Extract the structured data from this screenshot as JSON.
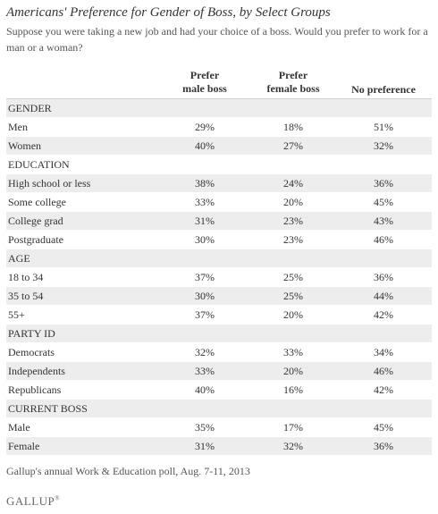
{
  "chart_data": {
    "type": "table",
    "title": "Americans' Preference for Gender of Boss, by Select Groups",
    "subtitle": "Suppose you were taking a new job and had your choice of a boss. Would you prefer to work for a man or a woman?",
    "columns": [
      "Prefer male boss",
      "Prefer female boss",
      "No preference"
    ],
    "column_lines": [
      [
        "Prefer",
        "male boss"
      ],
      [
        "Prefer",
        "female boss"
      ],
      [
        "No preference"
      ]
    ],
    "groups": [
      {
        "name": "GENDER",
        "rows": [
          {
            "label": "Men",
            "values": [
              "29%",
              "18%",
              "51%"
            ]
          },
          {
            "label": "Women",
            "values": [
              "40%",
              "27%",
              "32%"
            ]
          }
        ]
      },
      {
        "name": "EDUCATION",
        "rows": [
          {
            "label": "High school or less",
            "values": [
              "38%",
              "24%",
              "36%"
            ]
          },
          {
            "label": "Some college",
            "values": [
              "33%",
              "20%",
              "45%"
            ]
          },
          {
            "label": "College grad",
            "values": [
              "31%",
              "23%",
              "43%"
            ]
          },
          {
            "label": "Postgraduate",
            "values": [
              "30%",
              "23%",
              "46%"
            ]
          }
        ]
      },
      {
        "name": "AGE",
        "rows": [
          {
            "label": "18 to 34",
            "values": [
              "37%",
              "25%",
              "36%"
            ]
          },
          {
            "label": "35 to 54",
            "values": [
              "30%",
              "25%",
              "44%"
            ]
          },
          {
            "label": "55+",
            "values": [
              "37%",
              "20%",
              "42%"
            ]
          }
        ]
      },
      {
        "name": "PARTY ID",
        "rows": [
          {
            "label": "Democrats",
            "values": [
              "32%",
              "33%",
              "34%"
            ]
          },
          {
            "label": "Independents",
            "values": [
              "33%",
              "20%",
              "46%"
            ]
          },
          {
            "label": "Republicans",
            "values": [
              "40%",
              "16%",
              "42%"
            ]
          }
        ]
      },
      {
        "name": "CURRENT BOSS",
        "rows": [
          {
            "label": "Male",
            "values": [
              "35%",
              "17%",
              "45%"
            ]
          },
          {
            "label": "Female",
            "values": [
              "31%",
              "32%",
              "36%"
            ]
          }
        ]
      }
    ],
    "source": "Gallup's annual Work & Education poll, Aug. 7-11, 2013",
    "logo": "GALLUP"
  },
  "colors": {
    "shade": "#ededed",
    "text": "#333333"
  }
}
